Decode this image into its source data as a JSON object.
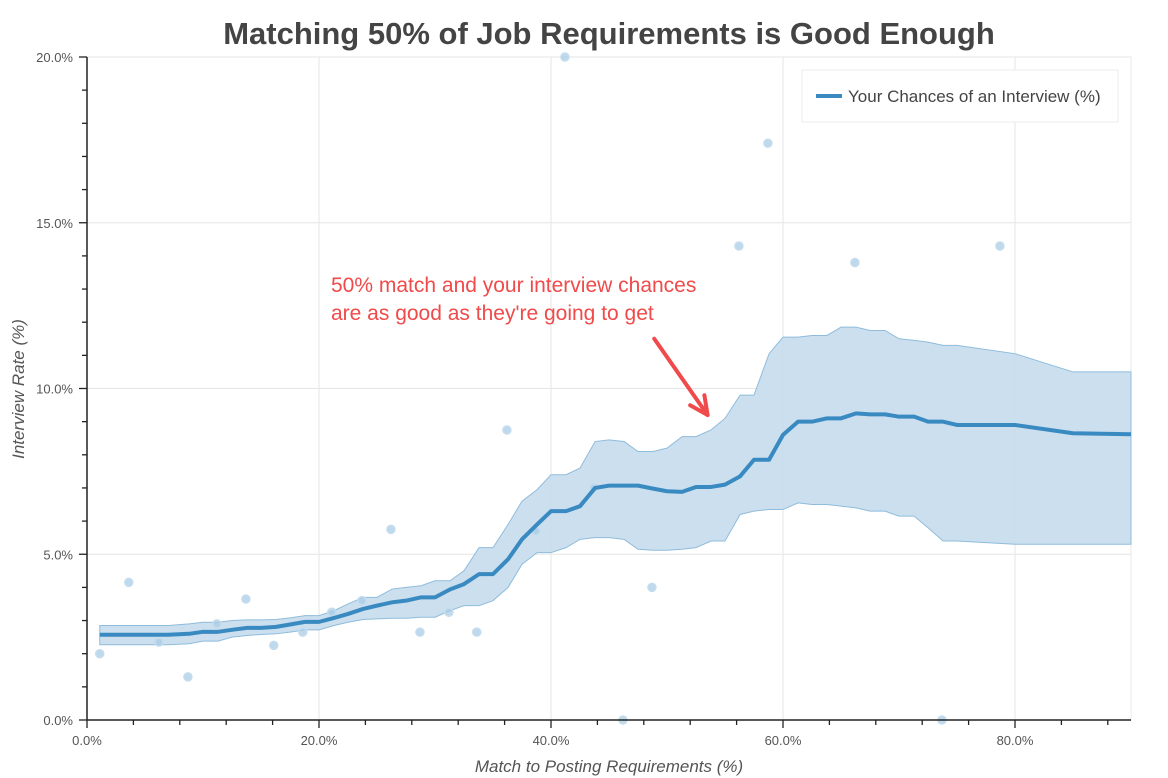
{
  "chart_data": {
    "type": "line",
    "title": "Matching 50% of Job Requirements is Good Enough",
    "xlabel": "Match to Posting Requirements (%)",
    "ylabel": "Interview Rate (%)",
    "xlim": [
      0,
      90
    ],
    "ylim": [
      0,
      20
    ],
    "grid": true,
    "x_ticks": [
      0,
      20,
      40,
      60,
      80
    ],
    "x_tick_labels": [
      "0.0%",
      "20.0%",
      "40.0%",
      "60.0%",
      "80.0%"
    ],
    "x_minor_step": 4,
    "y_ticks": [
      0,
      5,
      10,
      15,
      20
    ],
    "y_tick_labels": [
      "0.0%",
      "5.0%",
      "10.0%",
      "15.0%",
      "20.0%"
    ],
    "y_minor_step": 1,
    "legend": {
      "placement": "top-right",
      "entries": [
        "Your Chances of an Interview (%)"
      ]
    },
    "colors": {
      "line": "#3a8ac2",
      "band": "#c8dded",
      "band_edge": "#8fbcdc",
      "points": "#a9cce6",
      "annotation": "#f04a4a",
      "title": "#444444"
    },
    "series": [
      {
        "name": "Your Chances of an Interview (%)",
        "x": [
          1.1,
          4.0,
          7.0,
          8.8,
          10.0,
          11.3,
          12.5,
          13.8,
          15.0,
          16.3,
          17.5,
          18.8,
          20.0,
          21.3,
          22.5,
          23.8,
          25.0,
          26.3,
          27.5,
          28.8,
          30.0,
          31.3,
          32.5,
          33.8,
          35.0,
          36.3,
          37.5,
          38.8,
          40.0,
          41.3,
          42.5,
          43.8,
          45.0,
          46.3,
          47.5,
          48.8,
          50.0,
          51.3,
          52.5,
          53.8,
          55.0,
          56.3,
          57.5,
          58.8,
          60.0,
          61.3,
          62.5,
          63.8,
          65.0,
          66.3,
          67.5,
          68.8,
          70.0,
          71.3,
          72.5,
          73.8,
          75.0,
          80.0,
          85.0,
          90.0
        ],
        "values": [
          2.57,
          2.57,
          2.57,
          2.6,
          2.66,
          2.66,
          2.72,
          2.78,
          2.78,
          2.81,
          2.88,
          2.96,
          2.96,
          3.08,
          3.2,
          3.35,
          3.45,
          3.55,
          3.6,
          3.7,
          3.7,
          3.94,
          4.1,
          4.4,
          4.4,
          4.85,
          5.45,
          5.9,
          6.3,
          6.3,
          6.45,
          7.0,
          7.07,
          7.07,
          7.07,
          6.98,
          6.9,
          6.88,
          7.03,
          7.03,
          7.1,
          7.35,
          7.85,
          7.85,
          8.6,
          9.0,
          9.0,
          9.1,
          9.1,
          9.25,
          9.22,
          9.22,
          9.15,
          9.15,
          9.0,
          9.0,
          8.9,
          8.9,
          8.65,
          8.62
        ],
        "lower": [
          2.27,
          2.27,
          2.27,
          2.3,
          2.38,
          2.38,
          2.5,
          2.55,
          2.58,
          2.6,
          2.65,
          2.72,
          2.72,
          2.85,
          2.95,
          3.03,
          3.05,
          3.07,
          3.07,
          3.1,
          3.1,
          3.3,
          3.45,
          3.45,
          3.6,
          4.0,
          4.7,
          5.05,
          5.05,
          5.2,
          5.45,
          5.5,
          5.5,
          5.45,
          5.15,
          5.12,
          5.12,
          5.15,
          5.2,
          5.4,
          5.4,
          6.2,
          6.3,
          6.35,
          6.35,
          6.55,
          6.5,
          6.5,
          6.45,
          6.4,
          6.3,
          6.3,
          6.15,
          6.15,
          5.8,
          5.4,
          5.4,
          5.3,
          5.3,
          5.3
        ],
        "upper": [
          2.85,
          2.85,
          2.85,
          2.9,
          2.95,
          2.95,
          3.0,
          3.02,
          3.02,
          3.03,
          3.08,
          3.15,
          3.15,
          3.3,
          3.5,
          3.7,
          3.7,
          3.95,
          4.0,
          4.05,
          4.2,
          4.2,
          4.5,
          5.2,
          5.2,
          5.9,
          6.6,
          6.95,
          7.4,
          7.4,
          7.6,
          8.4,
          8.45,
          8.4,
          8.1,
          8.1,
          8.2,
          8.55,
          8.55,
          8.75,
          9.1,
          9.8,
          9.8,
          11.05,
          11.55,
          11.55,
          11.6,
          11.6,
          11.85,
          11.85,
          11.75,
          11.75,
          11.5,
          11.45,
          11.4,
          11.3,
          11.3,
          11.05,
          10.5,
          10.5
        ]
      }
    ],
    "scatter": {
      "x": [
        1.1,
        3.6,
        6.2,
        8.7,
        11.2,
        13.7,
        16.1,
        18.6,
        21.1,
        23.7,
        26.2,
        28.7,
        31.2,
        33.6,
        36.2,
        38.7,
        41.2,
        43.7,
        46.2,
        48.7,
        56.2,
        58.7,
        66.2,
        73.7,
        78.7
      ],
      "values": [
        2.0,
        4.15,
        2.35,
        1.3,
        2.9,
        3.65,
        2.25,
        2.65,
        3.25,
        3.6,
        5.75,
        2.65,
        3.25,
        2.65,
        8.75,
        5.7,
        20.0,
        7.0,
        0.0,
        4.0,
        14.3,
        17.4,
        13.8,
        0.0,
        14.3
      ]
    },
    "annotation": {
      "lines": [
        "50% match and your interview chances",
        "are as good as they're going to get"
      ],
      "arrow_from": [
        48.9,
        11.5
      ],
      "arrow_to": [
        53.5,
        9.2
      ]
    }
  }
}
